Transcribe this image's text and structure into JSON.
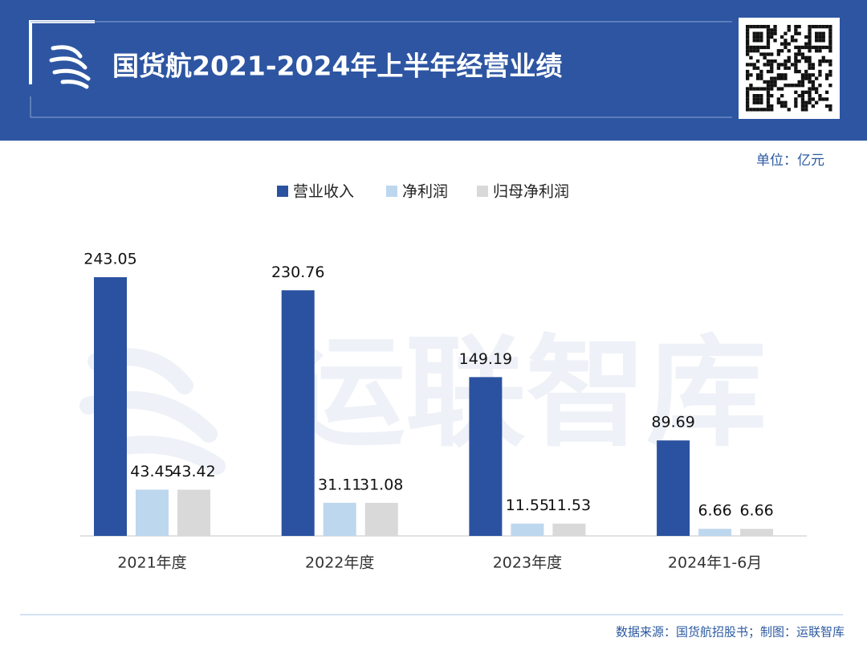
{
  "chart_data": {
    "type": "bar",
    "title": "国货航2021-2024年上半年经营业绩",
    "unit": "单位：亿元",
    "watermark": "运联智库",
    "source": "数据来源：国货航招股书；制图：运联智库",
    "categories": [
      "2021年度",
      "2022年度",
      "2023年度",
      "2024年1-6月"
    ],
    "series": [
      {
        "name": "营业收入",
        "color": "#2b52a0",
        "values": [
          243.05,
          230.76,
          149.19,
          89.69
        ]
      },
      {
        "name": "净利润",
        "color": "#bdd7ee",
        "values": [
          43.45,
          31.11,
          11.55,
          6.66
        ]
      },
      {
        "name": "归母净利润",
        "color": "#d9d9d9",
        "values": [
          43.42,
          31.08,
          11.53,
          6.66
        ]
      }
    ]
  }
}
